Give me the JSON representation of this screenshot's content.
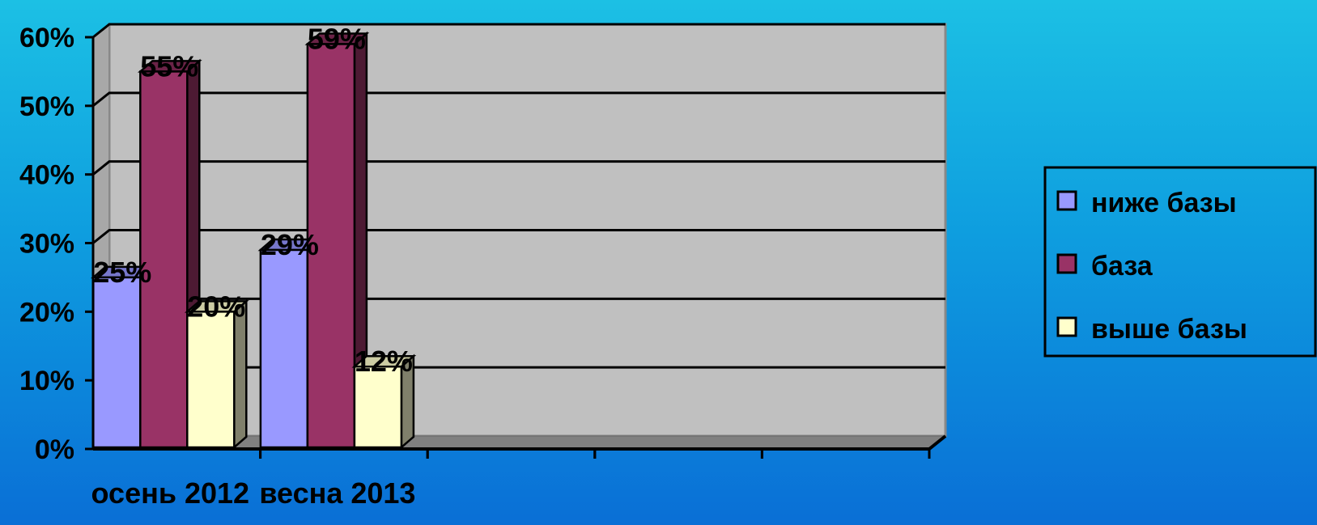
{
  "colors": {
    "wall": "#c0c0c0",
    "floor": "#808080",
    "grid": "#000000",
    "background_top": "#1cc0e4",
    "background_bottom": "#0a6fd6"
  },
  "chart_data": {
    "type": "bar",
    "style": "3d-clustered-column",
    "title": "",
    "xlabel": "",
    "ylabel": "",
    "categories": [
      "осень 2012",
      "весна 2013",
      "",
      "",
      ""
    ],
    "series": [
      {
        "name": "ниже базы",
        "values": [
          25,
          29,
          null,
          null,
          null
        ],
        "labels": [
          "25%",
          "29%",
          "",
          "",
          ""
        ],
        "color": "#9999ff",
        "side_color": "#6b6bb3",
        "top_color": "#7777cc"
      },
      {
        "name": "база",
        "values": [
          55,
          59,
          null,
          null,
          null
        ],
        "labels": [
          "55%",
          "59%",
          "",
          "",
          ""
        ],
        "color": "#993366",
        "side_color": "#4d1a33",
        "top_color": "#6b2347"
      },
      {
        "name": "выше базы",
        "values": [
          20,
          12,
          null,
          null,
          null
        ],
        "labels": [
          "20%",
          "12%",
          "",
          "",
          ""
        ],
        "color": "#ffffcc",
        "side_color": "#80806b",
        "top_color": "#cccca3"
      }
    ],
    "y_ticks": [
      "0%",
      "10%",
      "20%",
      "30%",
      "40%",
      "50%",
      "60%"
    ],
    "ylim": [
      0,
      60
    ],
    "grid": true,
    "legend_position": "right"
  }
}
